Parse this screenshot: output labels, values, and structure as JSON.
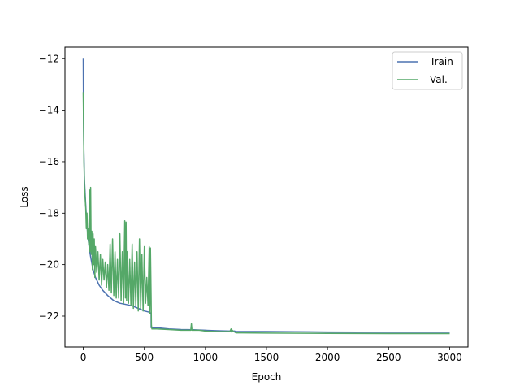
{
  "chart_data": {
    "type": "line",
    "title": "",
    "xlabel": "Epoch",
    "ylabel": "Loss",
    "xlim": [
      -150,
      3150
    ],
    "ylim": [
      -23.2,
      -11.55
    ],
    "xticks": [
      0,
      500,
      1000,
      1500,
      2000,
      2500,
      3000
    ],
    "xtick_labels": [
      "0",
      "500",
      "1000",
      "1500",
      "2000",
      "2500",
      "3000"
    ],
    "yticks": [
      -22,
      -20,
      -18,
      -16,
      -14,
      -12
    ],
    "ytick_labels": [
      "−22",
      "−20",
      "−18",
      "−16",
      "−14",
      "−12"
    ],
    "grid": false,
    "legend_position": "upper right",
    "series": [
      {
        "name": "Train",
        "color": "#4c72b0",
        "x": [
          0,
          2,
          5,
          10,
          20,
          30,
          40,
          50,
          60,
          80,
          100,
          130,
          160,
          200,
          250,
          300,
          350,
          400,
          450,
          500,
          540,
          555,
          556,
          560,
          600,
          700,
          800,
          900,
          1000,
          1100,
          1200,
          1240,
          1250,
          1300,
          1500,
          2000,
          2500,
          3000
        ],
        "y": [
          -12.0,
          -14.0,
          -15.6,
          -16.7,
          -17.7,
          -18.5,
          -19.0,
          -19.4,
          -19.7,
          -20.2,
          -20.5,
          -20.8,
          -21.0,
          -21.2,
          -21.4,
          -21.5,
          -21.55,
          -21.6,
          -21.7,
          -21.8,
          -21.85,
          -21.9,
          -22.45,
          -22.45,
          -22.45,
          -22.5,
          -22.52,
          -22.53,
          -22.55,
          -22.57,
          -22.58,
          -22.58,
          -22.6,
          -22.6,
          -22.6,
          -22.62,
          -22.63,
          -22.63
        ]
      },
      {
        "name": "Val.",
        "color": "#55a868",
        "x": [
          0,
          3,
          6,
          10,
          15,
          20,
          25,
          30,
          35,
          40,
          45,
          50,
          55,
          60,
          65,
          70,
          75,
          80,
          85,
          90,
          95,
          100,
          110,
          120,
          130,
          140,
          150,
          160,
          170,
          180,
          190,
          200,
          210,
          220,
          230,
          240,
          250,
          260,
          270,
          280,
          290,
          300,
          310,
          320,
          330,
          340,
          345,
          350,
          355,
          360,
          370,
          380,
          390,
          400,
          410,
          420,
          430,
          440,
          450,
          460,
          470,
          480,
          490,
          500,
          510,
          520,
          530,
          540,
          545,
          550,
          555,
          558,
          562,
          600,
          700,
          800,
          880,
          885,
          890,
          950,
          1000,
          1100,
          1200,
          1210,
          1215,
          1220,
          1230,
          1240,
          1250,
          1300,
          1500,
          2000,
          2500,
          3000
        ],
        "y": [
          -13.3,
          -14.8,
          -16.0,
          -16.9,
          -17.4,
          -17.8,
          -18.6,
          -18.0,
          -19.0,
          -18.6,
          -19.2,
          -17.1,
          -19.5,
          -17.0,
          -19.6,
          -18.7,
          -20.2,
          -18.8,
          -20.0,
          -19.0,
          -20.5,
          -19.3,
          -20.3,
          -19.5,
          -20.6,
          -19.6,
          -20.8,
          -19.8,
          -20.6,
          -19.9,
          -20.9,
          -20.0,
          -21.0,
          -19.2,
          -21.1,
          -19.0,
          -21.2,
          -19.5,
          -21.3,
          -19.8,
          -21.3,
          -18.8,
          -21.4,
          -19.5,
          -21.5,
          -18.3,
          -21.3,
          -18.35,
          -21.4,
          -19.5,
          -21.5,
          -19.8,
          -21.6,
          -19.2,
          -21.7,
          -19.9,
          -21.6,
          -19.5,
          -21.8,
          -19.0,
          -21.7,
          -19.6,
          -21.8,
          -19.3,
          -21.5,
          -20.5,
          -21.6,
          -19.3,
          -21.9,
          -19.35,
          -21.2,
          -22.35,
          -22.5,
          -22.5,
          -22.52,
          -22.55,
          -22.55,
          -22.3,
          -22.55,
          -22.55,
          -22.58,
          -22.6,
          -22.6,
          -22.5,
          -22.62,
          -22.55,
          -22.6,
          -22.62,
          -22.65,
          -22.65,
          -22.66,
          -22.67,
          -22.68,
          -22.68
        ]
      }
    ]
  }
}
